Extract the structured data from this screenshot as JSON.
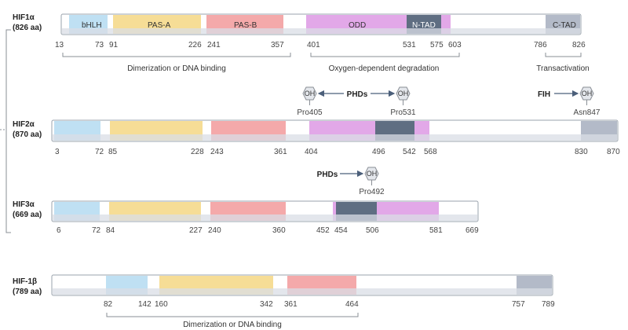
{
  "proteins": [
    {
      "name": "HIF1α",
      "length": "(826 aa)",
      "positions": [
        "13",
        "73",
        "91",
        "226",
        "241",
        "357",
        "401",
        "531",
        "575",
        "603",
        "786",
        "826"
      ],
      "domain_labels": {
        "bhlh": "bHLH",
        "pasa": "PAS-A",
        "pasb": "PAS-B",
        "odd": "ODD",
        "ntad": "N-TAD",
        "ctad": "C-TAD"
      },
      "regions": {
        "dimer": "Dimerization or DNA binding",
        "oxy": "Oxygen-dependent degradation",
        "trans": "Transactivation"
      }
    },
    {
      "name": "HIF2α",
      "length": "(870 aa)",
      "positions": [
        "3",
        "72",
        "85",
        "228",
        "243",
        "361",
        "404",
        "496",
        "542",
        "568",
        "830",
        "870"
      ],
      "modifications": {
        "phds": "PHDs",
        "fih": "FIH",
        "oh": "OH",
        "pro405": "Pro405",
        "pro531": "Pro531",
        "asn847": "Asn847"
      }
    },
    {
      "name": "HIF3α",
      "length": "(669 aa)",
      "positions": [
        "6",
        "72",
        "84",
        "227",
        "240",
        "360",
        "452",
        "454",
        "506",
        "581",
        "669"
      ],
      "modifications": {
        "phds": "PHDs",
        "oh": "OH",
        "pro492": "Pro492"
      }
    },
    {
      "name": "HIF-1β",
      "length": "(789 aa)",
      "positions": [
        "82",
        "142",
        "160",
        "342",
        "361",
        "464",
        "757",
        "789"
      ],
      "regions": {
        "dimer": "Dimerization or DNA binding"
      }
    }
  ],
  "colors": {
    "bhlh": "#bfe0f3",
    "pas_a": "#f6dd96",
    "pas_b": "#f4a9aa",
    "odd": "#e2a8e8",
    "tad": "#5f6e82",
    "ctad": "#b3bac8",
    "bar_fill": "#ffffff",
    "bar_shadow": "#d9dde6",
    "bar_border": "#9aa3ad",
    "bracket": "#8a8f96",
    "hexagon": "#e4e7ec",
    "arrow": "#4b5f7a"
  }
}
